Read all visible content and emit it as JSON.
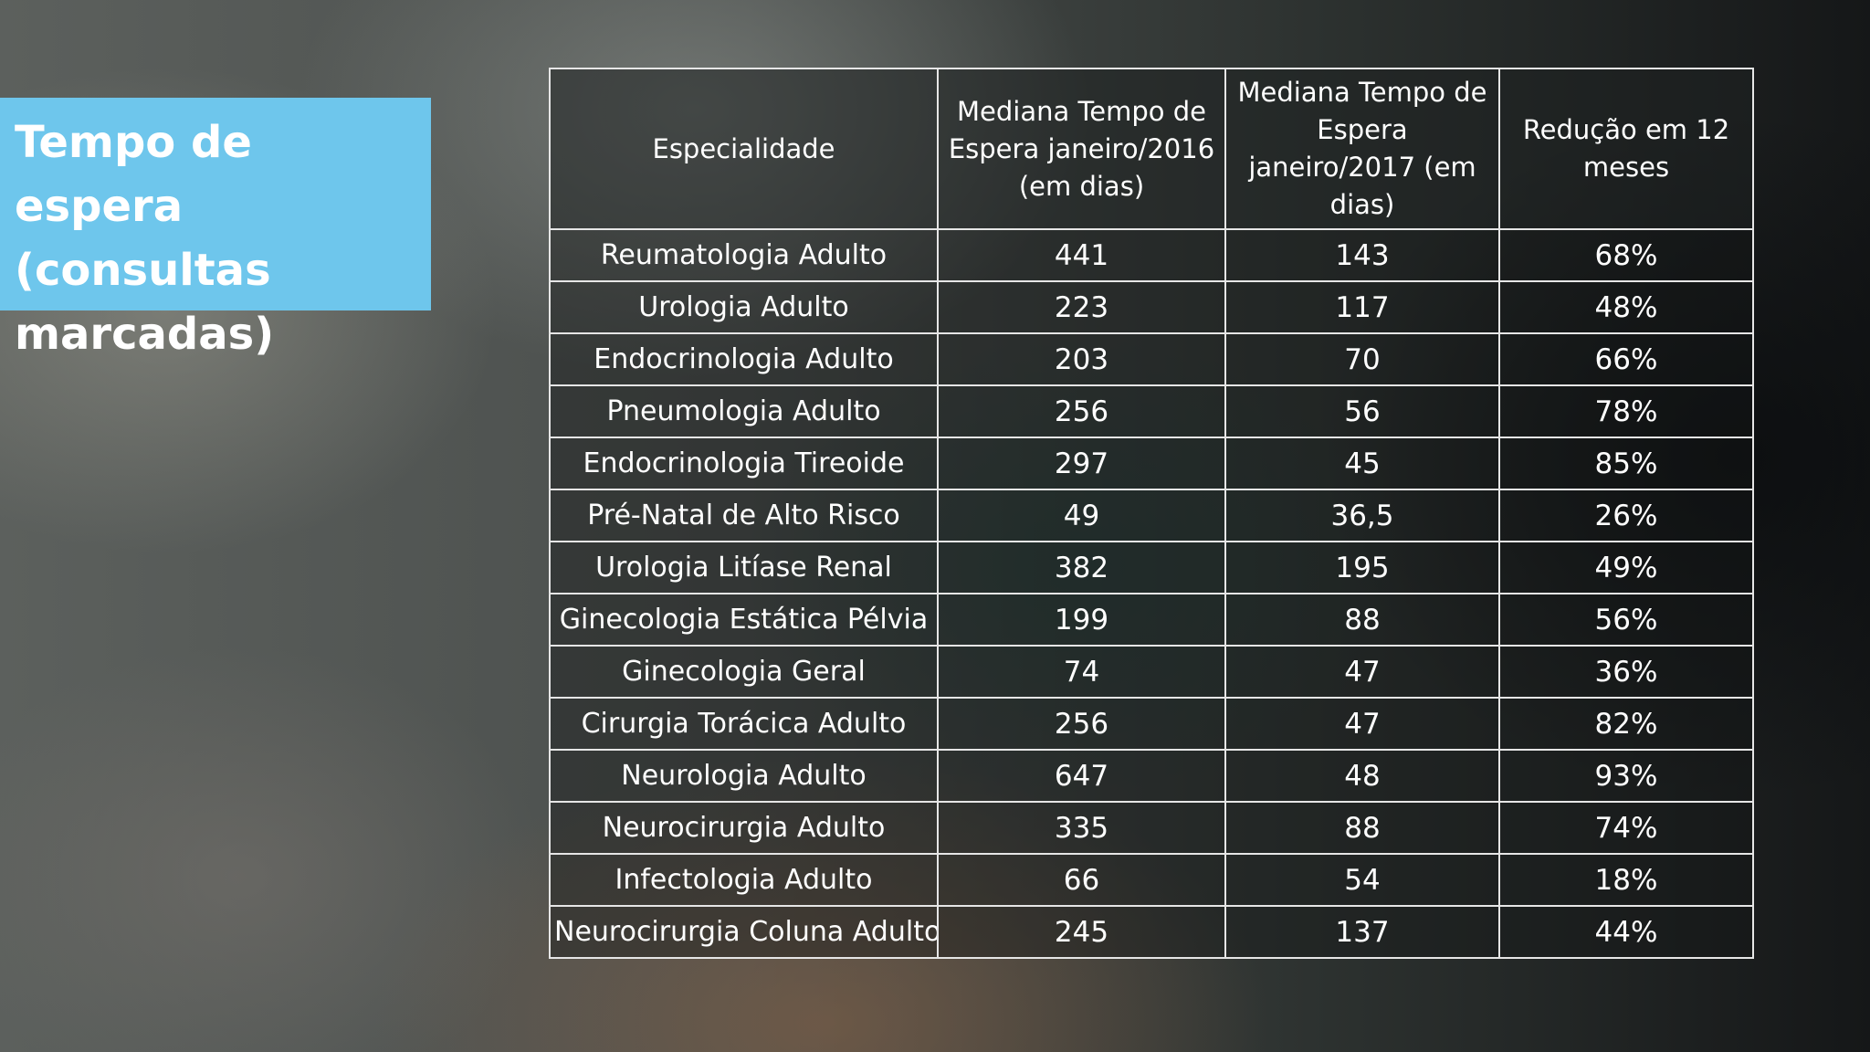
{
  "title": "Tempo de espera\n(consultas\nmarcadas)",
  "table": {
    "headers": [
      "Especialidade",
      "Mediana Tempo de Espera janeiro/2016 (em dias)",
      "Mediana Tempo de Espera janeiro/2017 (em dias)",
      "Redução em 12 meses"
    ],
    "rows": [
      [
        "Reumatologia Adulto",
        "441",
        "143",
        "68%"
      ],
      [
        "Urologia Adulto",
        "223",
        "117",
        "48%"
      ],
      [
        "Endocrinologia Adulto",
        "203",
        "70",
        "66%"
      ],
      [
        "Pneumologia Adulto",
        "256",
        "56",
        "78%"
      ],
      [
        "Endocrinologia Tireoide",
        "297",
        "45",
        "85%"
      ],
      [
        "Pré-Natal de Alto Risco",
        "49",
        "36,5",
        "26%"
      ],
      [
        "Urologia Litíase Renal",
        "382",
        "195",
        "49%"
      ],
      [
        "Ginecologia Estática Pélvia",
        "199",
        "88",
        "56%"
      ],
      [
        "Ginecologia Geral",
        "74",
        "47",
        "36%"
      ],
      [
        "Cirurgia Torácica Adulto",
        "256",
        "47",
        "82%"
      ],
      [
        "Neurologia Adulto",
        "647",
        "48",
        "93%"
      ],
      [
        "Neurocirurgia Adulto",
        "335",
        "88",
        "74%"
      ],
      [
        "Infectologia Adulto",
        "66",
        "54",
        "18%"
      ],
      [
        "Neurocirurgia Coluna Adulto",
        "245",
        "137",
        "44%"
      ]
    ]
  },
  "colors": {
    "title_bg": "#6ec6ec",
    "text": "#ffffff",
    "grid": "#e6e6e6"
  }
}
